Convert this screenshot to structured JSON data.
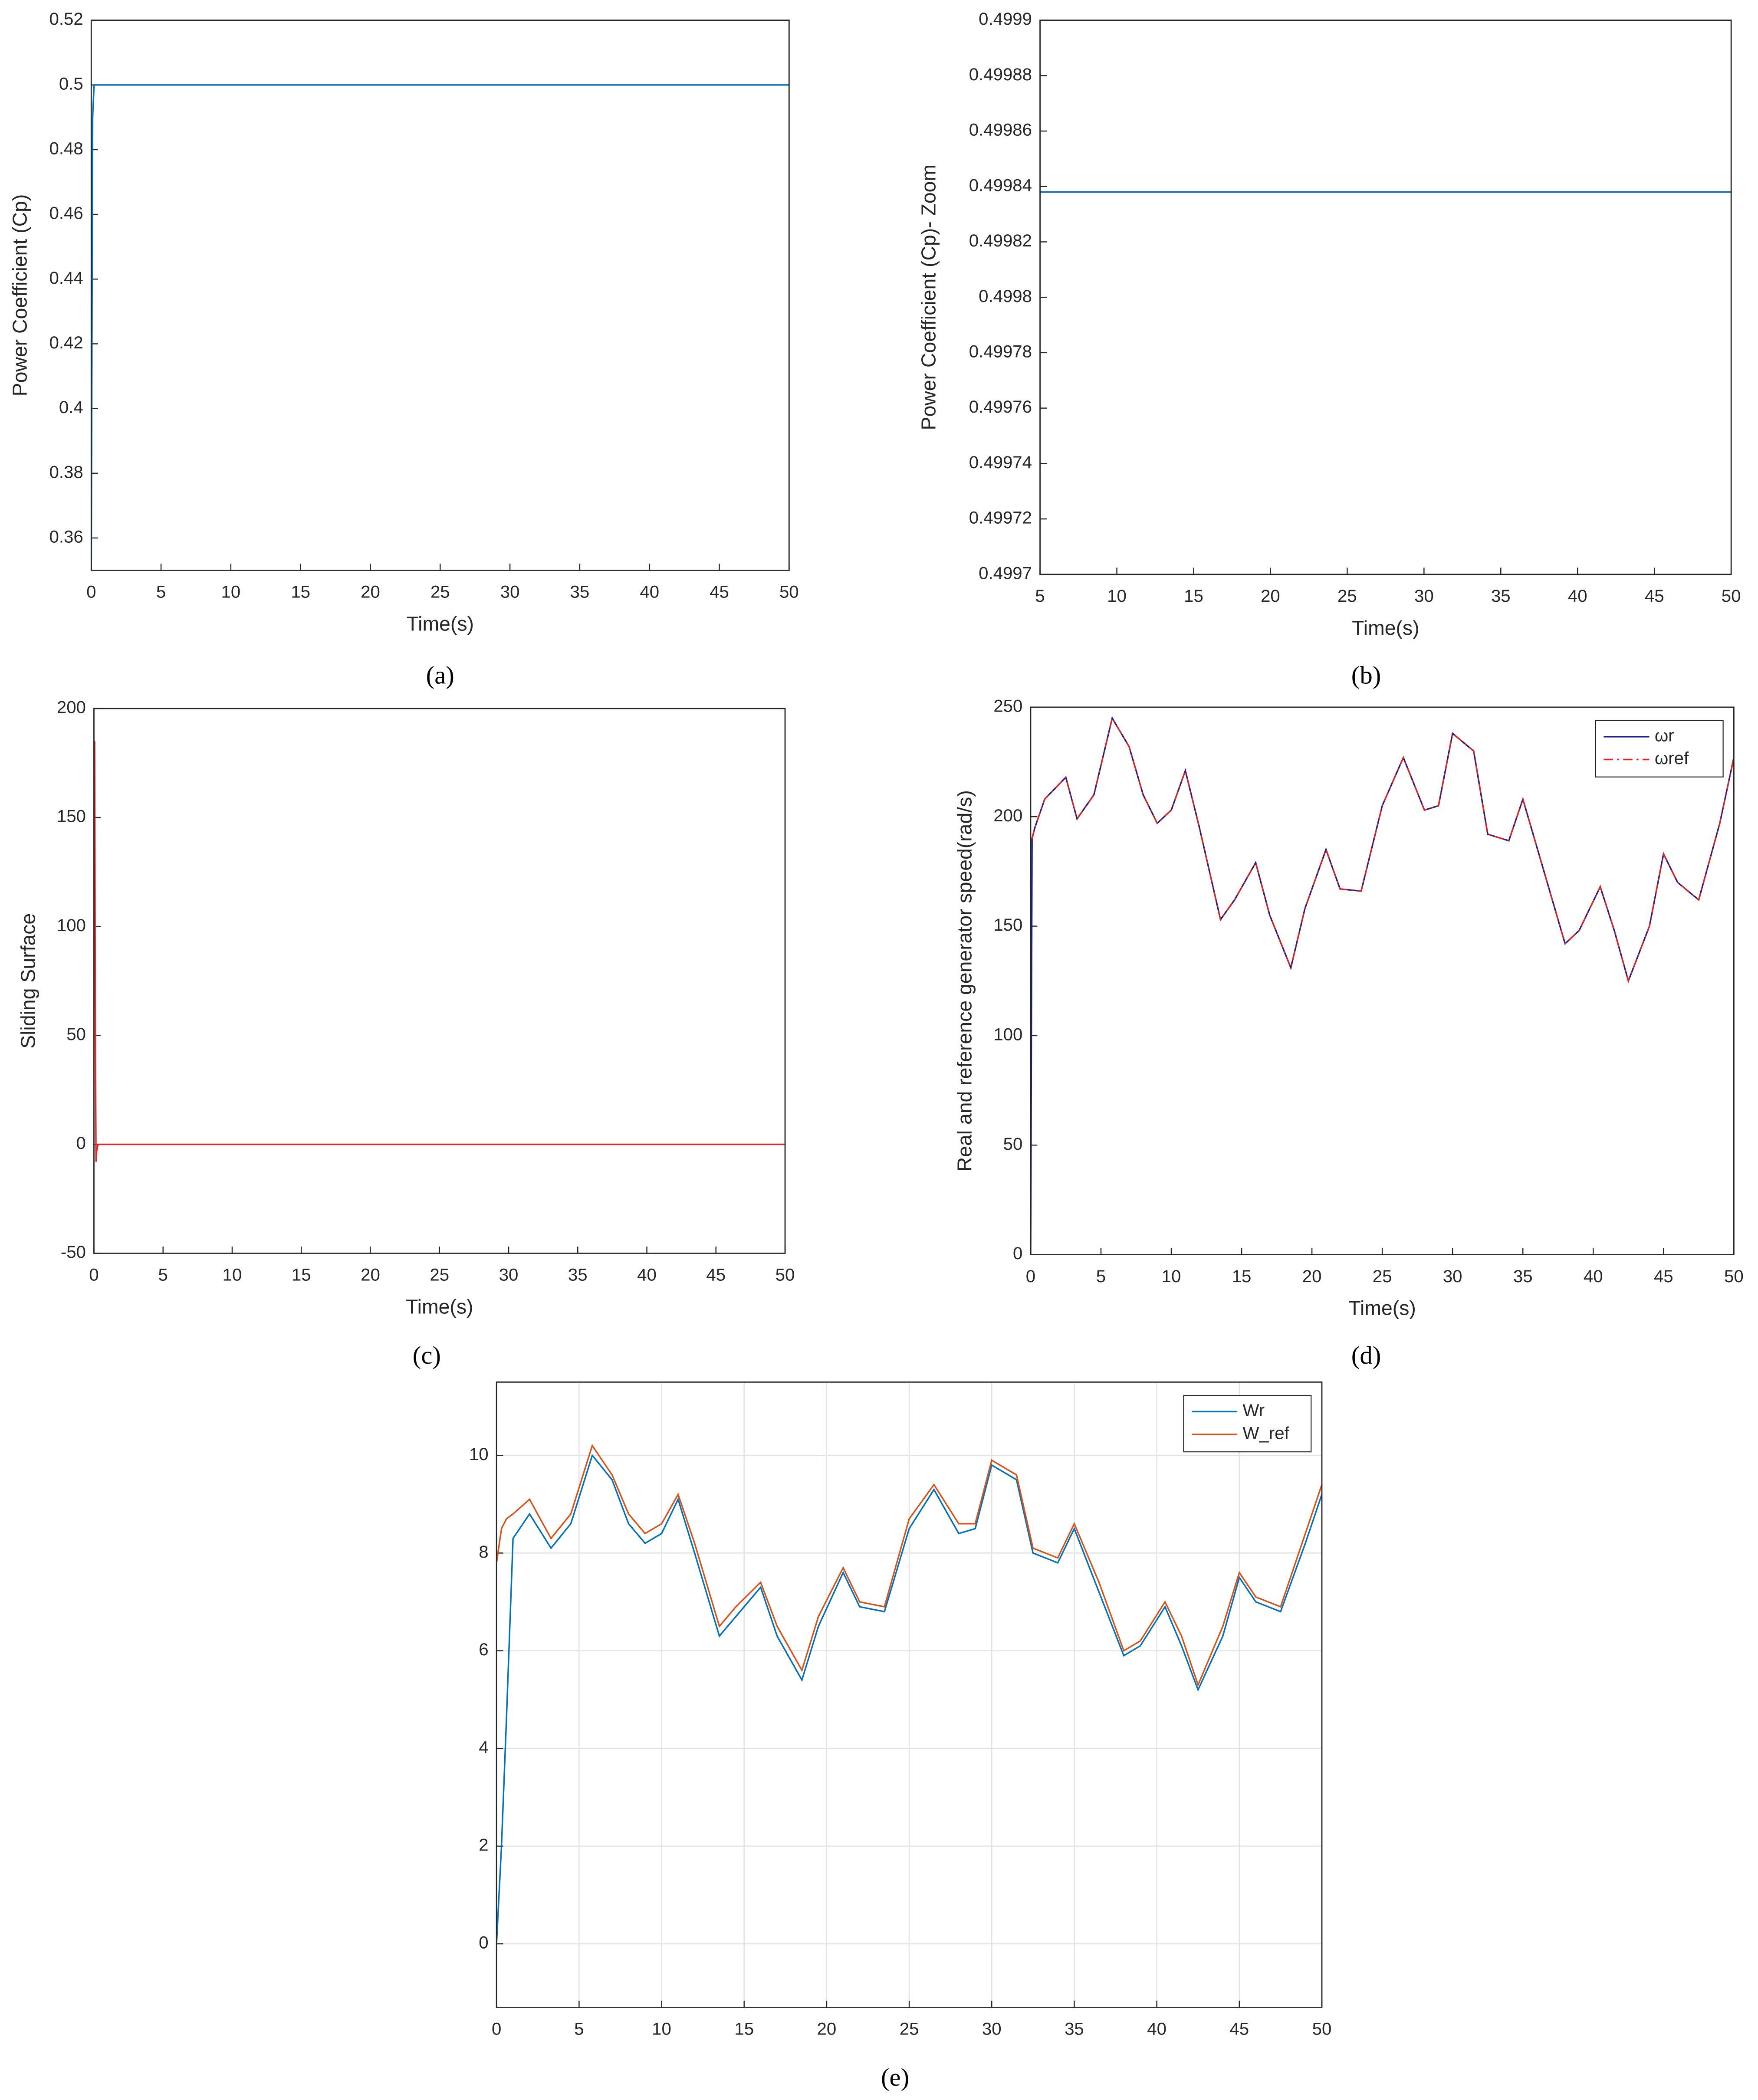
{
  "chart_data": [
    {
      "type": "line",
      "caption": "(a)",
      "xlabel": "Time(s)",
      "ylabel": "Power Coefficient (Cp)",
      "xlim": [
        0,
        50
      ],
      "xticks": [
        0,
        5,
        10,
        15,
        20,
        25,
        30,
        35,
        40,
        45,
        50
      ],
      "ylim": [
        0.35,
        0.52
      ],
      "yticks": [
        0.36,
        0.38,
        0.4,
        0.42,
        0.44,
        0.46,
        0.48,
        0.5,
        0.52
      ],
      "grid": false,
      "x": [
        0,
        0.05,
        0.1,
        0.2,
        50
      ],
      "series": [
        {
          "color": "#0072bd",
          "values": [
            0.35,
            0.42,
            0.49,
            0.5,
            0.5
          ]
        }
      ]
    },
    {
      "type": "line",
      "caption": "(b)",
      "xlabel": "Time(s)",
      "ylabel": "Power Coefficient (Cp)- Zoom",
      "xlim": [
        5,
        50
      ],
      "xticks": [
        5,
        10,
        15,
        20,
        25,
        30,
        35,
        40,
        45,
        50
      ],
      "ylim": [
        0.4997,
        0.4999
      ],
      "yticks": [
        0.4997,
        0.49972,
        0.49974,
        0.49976,
        0.49978,
        0.4998,
        0.49982,
        0.49984,
        0.49986,
        0.49988,
        0.4999
      ],
      "grid": false,
      "x": [
        5,
        10,
        15,
        20,
        25,
        30,
        35,
        40,
        45,
        50
      ],
      "series": [
        {
          "color": "#0072bd",
          "values": [
            0.499838,
            0.499838,
            0.499838,
            0.499838,
            0.499838,
            0.499838,
            0.499838,
            0.499838,
            0.499838,
            0.499838
          ]
        }
      ]
    },
    {
      "type": "line",
      "caption": "(c)",
      "xlabel": "Time(s)",
      "ylabel": "Sliding Surface",
      "xlim": [
        0,
        50
      ],
      "xticks": [
        0,
        5,
        10,
        15,
        20,
        25,
        30,
        35,
        40,
        45,
        50
      ],
      "ylim": [
        -50,
        200
      ],
      "yticks": [
        -50,
        0,
        50,
        100,
        150,
        200
      ],
      "grid": false,
      "x": [
        0,
        0.05,
        0.1,
        0.15,
        0.2,
        0.3,
        0.5,
        50
      ],
      "series": [
        {
          "color": "#e8272a",
          "values": [
            130,
            185,
            60,
            -8,
            -3,
            0,
            0,
            0
          ]
        }
      ]
    },
    {
      "type": "line",
      "caption": "(d)",
      "xlabel": "Time(s)",
      "ylabel": "Real and reference generator speed(rad/s)",
      "xlim": [
        0,
        50
      ],
      "xticks": [
        0,
        5,
        10,
        15,
        20,
        25,
        30,
        35,
        40,
        45,
        50
      ],
      "ylim": [
        0,
        250
      ],
      "yticks": [
        0,
        50,
        100,
        150,
        200,
        250
      ],
      "grid": false,
      "legend": "upper right",
      "x": [
        0,
        0.1,
        0.3,
        1,
        2.5,
        3.3,
        4.5,
        5.8,
        7,
        8,
        9,
        10,
        11,
        12,
        13.5,
        14.5,
        16,
        17,
        18.5,
        19.5,
        21,
        22,
        23.5,
        25,
        26.5,
        28,
        29,
        30,
        31.5,
        32.5,
        34,
        35,
        36.5,
        38,
        39,
        40.5,
        41.5,
        42.5,
        44,
        45,
        46,
        47.5,
        49,
        50
      ],
      "series": [
        {
          "name": "ωr",
          "color": "#1c1c8c",
          "linestyle": "solid",
          "values": [
            0,
            190,
            195,
            208,
            218,
            199,
            210,
            245,
            232,
            210,
            197,
            203,
            221,
            195,
            153,
            162,
            179,
            155,
            131,
            158,
            185,
            167,
            166,
            205,
            227,
            203,
            205,
            238,
            230,
            192,
            189,
            208,
            175,
            142,
            148,
            168,
            148,
            125,
            150,
            183,
            170,
            162,
            197,
            227
          ]
        },
        {
          "name": "ωref",
          "color": "#d62728",
          "linestyle": "dashdot",
          "values": [
            190,
            190,
            195,
            208,
            218,
            199,
            210,
            245,
            232,
            210,
            197,
            203,
            221,
            195,
            153,
            162,
            179,
            155,
            131,
            158,
            185,
            167,
            166,
            205,
            227,
            203,
            205,
            238,
            230,
            192,
            189,
            208,
            175,
            142,
            148,
            168,
            148,
            125,
            150,
            183,
            170,
            162,
            197,
            227
          ]
        }
      ]
    },
    {
      "type": "line",
      "caption": "(e)",
      "xlim": [
        0,
        50
      ],
      "xticks": [
        0,
        5,
        10,
        15,
        20,
        25,
        30,
        35,
        40,
        45,
        50
      ],
      "ylim": [
        -1.3,
        11.5
      ],
      "yticks": [
        0,
        2,
        4,
        6,
        8,
        10
      ],
      "grid": true,
      "legend": "upper right",
      "x": [
        0,
        0.3,
        0.6,
        1,
        2,
        3.3,
        4.5,
        5.8,
        7,
        8,
        9,
        10,
        11,
        12,
        13.5,
        14.5,
        16,
        17,
        18.5,
        19.5,
        21,
        22,
        23.5,
        25,
        26.5,
        28,
        29,
        30,
        31.5,
        32.5,
        34,
        35,
        36.5,
        38,
        39,
        40.5,
        41.5,
        42.5,
        44,
        45,
        46,
        47.5,
        49,
        50
      ],
      "series": [
        {
          "name": "Wr",
          "color": "#0072bd",
          "linestyle": "solid",
          "values": [
            0,
            2.0,
            4.6,
            8.3,
            8.8,
            8.1,
            8.6,
            10.0,
            9.5,
            8.6,
            8.2,
            8.4,
            9.1,
            8.0,
            6.3,
            6.7,
            7.3,
            6.3,
            5.4,
            6.5,
            7.6,
            6.9,
            6.8,
            8.5,
            9.3,
            8.4,
            8.5,
            9.8,
            9.5,
            8.0,
            7.8,
            8.5,
            7.2,
            5.9,
            6.1,
            6.9,
            6.1,
            5.2,
            6.3,
            7.5,
            7.0,
            6.8,
            8.2,
            9.2
          ]
        },
        {
          "name": "W_ref",
          "color": "#d95319",
          "linestyle": "solid",
          "values": [
            7.8,
            8.5,
            8.7,
            8.8,
            9.1,
            8.3,
            8.8,
            10.2,
            9.6,
            8.8,
            8.4,
            8.6,
            9.2,
            8.2,
            6.5,
            6.9,
            7.4,
            6.5,
            5.6,
            6.7,
            7.7,
            7.0,
            6.9,
            8.7,
            9.4,
            8.6,
            8.6,
            9.9,
            9.6,
            8.1,
            7.9,
            8.6,
            7.4,
            6.0,
            6.2,
            7.0,
            6.3,
            5.3,
            6.5,
            7.6,
            7.1,
            6.9,
            8.4,
            9.4
          ]
        }
      ]
    }
  ]
}
